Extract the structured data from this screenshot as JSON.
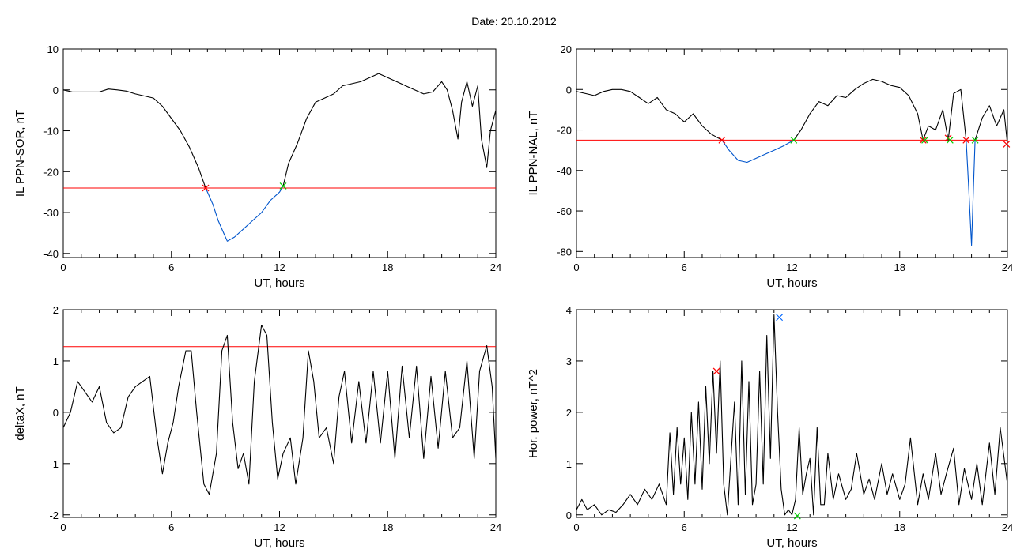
{
  "title_label": "Date:",
  "title_value": "20.10.2012",
  "chart_data": [
    {
      "type": "line",
      "xlabel": "UT, hours",
      "ylabel": "IL PPN-SOR, nT",
      "xlim": [
        0,
        24
      ],
      "ylim": [
        -41,
        10
      ],
      "xticks": [
        0,
        6,
        12,
        18,
        24
      ],
      "yticks": [
        10,
        0,
        -10,
        -20,
        -30,
        -40
      ],
      "threshold": -24,
      "series": [
        {
          "x": [
            0,
            0.5,
            1,
            1.5,
            2,
            2.5,
            3,
            3.5,
            4,
            4.5,
            5,
            5.5,
            6,
            6.5,
            7,
            7.5,
            7.9
          ],
          "y": [
            0,
            -0.5,
            -0.5,
            -0.5,
            -0.5,
            0.2,
            0,
            -0.3,
            -1,
            -1.5,
            -2,
            -4,
            -7,
            -10,
            -14,
            -19,
            -24
          ]
        },
        {
          "x": [
            7.9,
            8.3,
            8.6,
            8.9,
            9.1,
            9.5,
            10,
            10.5,
            11,
            11.5,
            12,
            12.2
          ],
          "y": [
            -24,
            -28,
            -32,
            -35,
            -37,
            -36,
            -34,
            -32,
            -30,
            -27,
            -25,
            -23.5
          ]
        },
        {
          "x": [
            12.2,
            12.5,
            13,
            13.5,
            14,
            14.5,
            15,
            15.5,
            16,
            16.5,
            17,
            17.5,
            18,
            18.5,
            19,
            19.5,
            20,
            20.5,
            21,
            21.3,
            21.6,
            21.9,
            22.1,
            22.4,
            22.7,
            23,
            23.2,
            23.5,
            23.7,
            24
          ],
          "y": [
            -23.5,
            -18,
            -13,
            -7,
            -3,
            -2,
            -1,
            1,
            1.5,
            2,
            3,
            4,
            3,
            2,
            1,
            0,
            -1,
            -0.5,
            2,
            0,
            -5,
            -12,
            -3,
            2,
            -4,
            1,
            -12,
            -19,
            -10,
            -5
          ]
        }
      ],
      "markers": [
        {
          "x": 7.9,
          "y": -24,
          "color": "#ff0000"
        },
        {
          "x": 12.2,
          "y": -23.5,
          "color": "#00cc00"
        }
      ]
    },
    {
      "type": "line",
      "xlabel": "UT, hours",
      "ylabel": "IL PPN-NAL, nT",
      "xlim": [
        0,
        24
      ],
      "ylim": [
        -83,
        20
      ],
      "xticks": [
        0,
        6,
        12,
        18,
        24
      ],
      "yticks": [
        20,
        0,
        -20,
        -40,
        -60,
        -80
      ],
      "threshold": -25,
      "series": [
        {
          "x": [
            0,
            0.5,
            1,
            1.5,
            2,
            2.5,
            3,
            3.5,
            4,
            4.5,
            5,
            5.5,
            6,
            6.5,
            7,
            7.5,
            8.1
          ],
          "y": [
            -1,
            -2,
            -3,
            -1,
            0,
            0,
            -1,
            -4,
            -7,
            -4,
            -10,
            -12,
            -16,
            -12,
            -18,
            -22,
            -25
          ]
        },
        {
          "x": [
            8.1,
            8.5,
            9,
            9.5,
            10,
            10.5,
            11,
            11.5,
            12.1
          ],
          "y": [
            -25,
            -30,
            -35,
            -36,
            -34,
            -32,
            -30,
            -28,
            -25
          ]
        },
        {
          "x": [
            12.1,
            12.5,
            13,
            13.5,
            14,
            14.5,
            15,
            15.5,
            16,
            16.5,
            17,
            17.5,
            18,
            18.5,
            19,
            19.3
          ],
          "y": [
            -25,
            -20,
            -12,
            -6,
            -8,
            -3,
            -4,
            0,
            3,
            5,
            4,
            2,
            1,
            -3,
            -12,
            -25
          ]
        },
        {
          "x": [
            19.3,
            19.6,
            20,
            20.4,
            20.7,
            21,
            21.4,
            21.7
          ],
          "y": [
            -25,
            -18,
            -20,
            -10,
            -25,
            -2,
            0,
            -25
          ]
        },
        {
          "x": [
            21.7,
            21.85,
            22,
            22.1,
            22.2
          ],
          "y": [
            -25,
            -50,
            -77,
            -50,
            -25
          ]
        },
        {
          "x": [
            22.2,
            22.6,
            23,
            23.4,
            23.8,
            24
          ],
          "y": [
            -25,
            -14,
            -8,
            -18,
            -10,
            -27
          ]
        }
      ],
      "markers": [
        {
          "x": 8.1,
          "y": -25,
          "color": "#ff0000"
        },
        {
          "x": 12.1,
          "y": -25,
          "color": "#00cc00"
        },
        {
          "x": 19.3,
          "y": -25,
          "color": "#ff0000"
        },
        {
          "x": 19.4,
          "y": -25,
          "color": "#00cc00"
        },
        {
          "x": 20.7,
          "y": -24,
          "color": "#ff0000"
        },
        {
          "x": 20.8,
          "y": -25,
          "color": "#00cc00"
        },
        {
          "x": 21.7,
          "y": -25,
          "color": "#ff0000"
        },
        {
          "x": 22.2,
          "y": -25,
          "color": "#00cc00"
        },
        {
          "x": 23.95,
          "y": -27,
          "color": "#ff0000"
        }
      ]
    },
    {
      "type": "line",
      "xlabel": "UT, hours",
      "ylabel": "deltaX, nT",
      "xlim": [
        0,
        24
      ],
      "ylim": [
        -2.05,
        2
      ],
      "xticks": [
        0,
        6,
        12,
        18,
        24
      ],
      "yticks": [
        2,
        1,
        0,
        -1,
        -2
      ],
      "threshold": 1.28,
      "series": [
        {
          "x": [
            0,
            0.4,
            0.8,
            1.2,
            1.6,
            2,
            2.4,
            2.8,
            3.2,
            3.6,
            4,
            4.4,
            4.8,
            5.2,
            5.5,
            5.8,
            6.1,
            6.4,
            6.8,
            7.1,
            7.4,
            7.8,
            8.1,
            8.5,
            8.8,
            9.1,
            9.4,
            9.7,
            10,
            10.3,
            10.6,
            11,
            11.3,
            11.6,
            11.9,
            12.2,
            12.6,
            12.9,
            13.3,
            13.6,
            13.9,
            14.2,
            14.6,
            15,
            15.3,
            15.6,
            16,
            16.4,
            16.8,
            17.2,
            17.6,
            18,
            18.4,
            18.8,
            19.2,
            19.6,
            20,
            20.4,
            20.8,
            21.2,
            21.6,
            22,
            22.4,
            22.8,
            23.1,
            23.5,
            23.8,
            24
          ],
          "y": [
            -0.3,
            0,
            0.6,
            0.4,
            0.2,
            0.5,
            -0.2,
            -0.4,
            -0.3,
            0.3,
            0.5,
            0.6,
            0.7,
            -0.5,
            -1.2,
            -0.6,
            -0.2,
            0.5,
            1.2,
            1.2,
            0,
            -1.4,
            -1.6,
            -0.8,
            1.2,
            1.5,
            -0.2,
            -1.1,
            -0.8,
            -1.4,
            0.6,
            1.7,
            1.5,
            -0.2,
            -1.3,
            -0.8,
            -0.5,
            -1.4,
            -0.5,
            1.2,
            0.6,
            -0.5,
            -0.3,
            -1,
            0.3,
            0.8,
            -0.6,
            0.6,
            -0.6,
            0.8,
            -0.6,
            0.8,
            -0.9,
            0.9,
            -0.5,
            0.9,
            -0.9,
            0.7,
            -0.7,
            0.8,
            -0.5,
            -0.3,
            1,
            -0.9,
            0.8,
            1.3,
            0.5,
            -0.9
          ]
        }
      ],
      "markers": []
    },
    {
      "type": "line",
      "xlabel": "UT, hours",
      "ylabel": "Hor. power, nT^2",
      "xlim": [
        0,
        24
      ],
      "ylim": [
        -0.05,
        4
      ],
      "xticks": [
        0,
        6,
        12,
        18,
        24
      ],
      "yticks": [
        4,
        3,
        2,
        1,
        0
      ],
      "threshold": null,
      "series": [
        {
          "x": [
            0,
            0.3,
            0.6,
            1,
            1.4,
            1.8,
            2.2,
            2.6,
            3,
            3.4,
            3.8,
            4.2,
            4.6,
            5,
            5.2,
            5.4,
            5.6,
            5.8,
            6,
            6.2,
            6.4,
            6.6,
            6.8,
            7,
            7.2,
            7.4,
            7.6,
            7.8,
            8,
            8.2,
            8.4,
            8.6,
            8.8,
            9,
            9.2,
            9.4,
            9.6,
            9.8,
            10,
            10.2,
            10.4,
            10.6,
            10.8,
            11,
            11.2,
            11.4,
            11.6,
            11.8,
            12,
            12.2,
            12.4,
            12.6,
            12.8,
            13,
            13.2,
            13.4,
            13.6,
            13.8,
            14,
            14.3,
            14.6,
            15,
            15.3,
            15.6,
            16,
            16.3,
            16.6,
            17,
            17.3,
            17.6,
            18,
            18.3,
            18.6,
            19,
            19.3,
            19.6,
            20,
            20.3,
            20.6,
            21,
            21.3,
            21.6,
            22,
            22.3,
            22.6,
            23,
            23.3,
            23.6,
            24
          ],
          "y": [
            0.1,
            0.3,
            0.1,
            0.2,
            0,
            0.1,
            0.05,
            0.2,
            0.4,
            0.2,
            0.5,
            0.3,
            0.6,
            0.2,
            1.6,
            0.4,
            1.7,
            0.6,
            1.5,
            0.3,
            2,
            0.6,
            2.2,
            0.5,
            2.5,
            1,
            2.8,
            1.2,
            3,
            0.6,
            0,
            1.1,
            2.2,
            0.2,
            3,
            0.4,
            2.6,
            0.2,
            0.6,
            2.8,
            0.6,
            3.5,
            1.1,
            3.9,
            2,
            0.5,
            0,
            0.1,
            0,
            0.3,
            1.7,
            0.4,
            0.8,
            1.1,
            0,
            1.7,
            0.2,
            0.2,
            1.2,
            0.3,
            0.8,
            0.3,
            0.5,
            1.2,
            0.4,
            0.7,
            0.3,
            1,
            0.4,
            0.8,
            0.3,
            0.6,
            1.5,
            0.2,
            0.8,
            0.3,
            1.2,
            0.4,
            0.8,
            1.3,
            0.2,
            0.9,
            0.3,
            1,
            0.2,
            1.4,
            0.4,
            1.7,
            0.6
          ]
        }
      ],
      "markers": [
        {
          "x": 7.8,
          "y": 2.8,
          "color": "#ff0000"
        },
        {
          "x": 11.3,
          "y": 3.85,
          "color": "#0066ff"
        },
        {
          "x": 12.3,
          "y": -0.02,
          "color": "#00cc00"
        }
      ]
    }
  ]
}
